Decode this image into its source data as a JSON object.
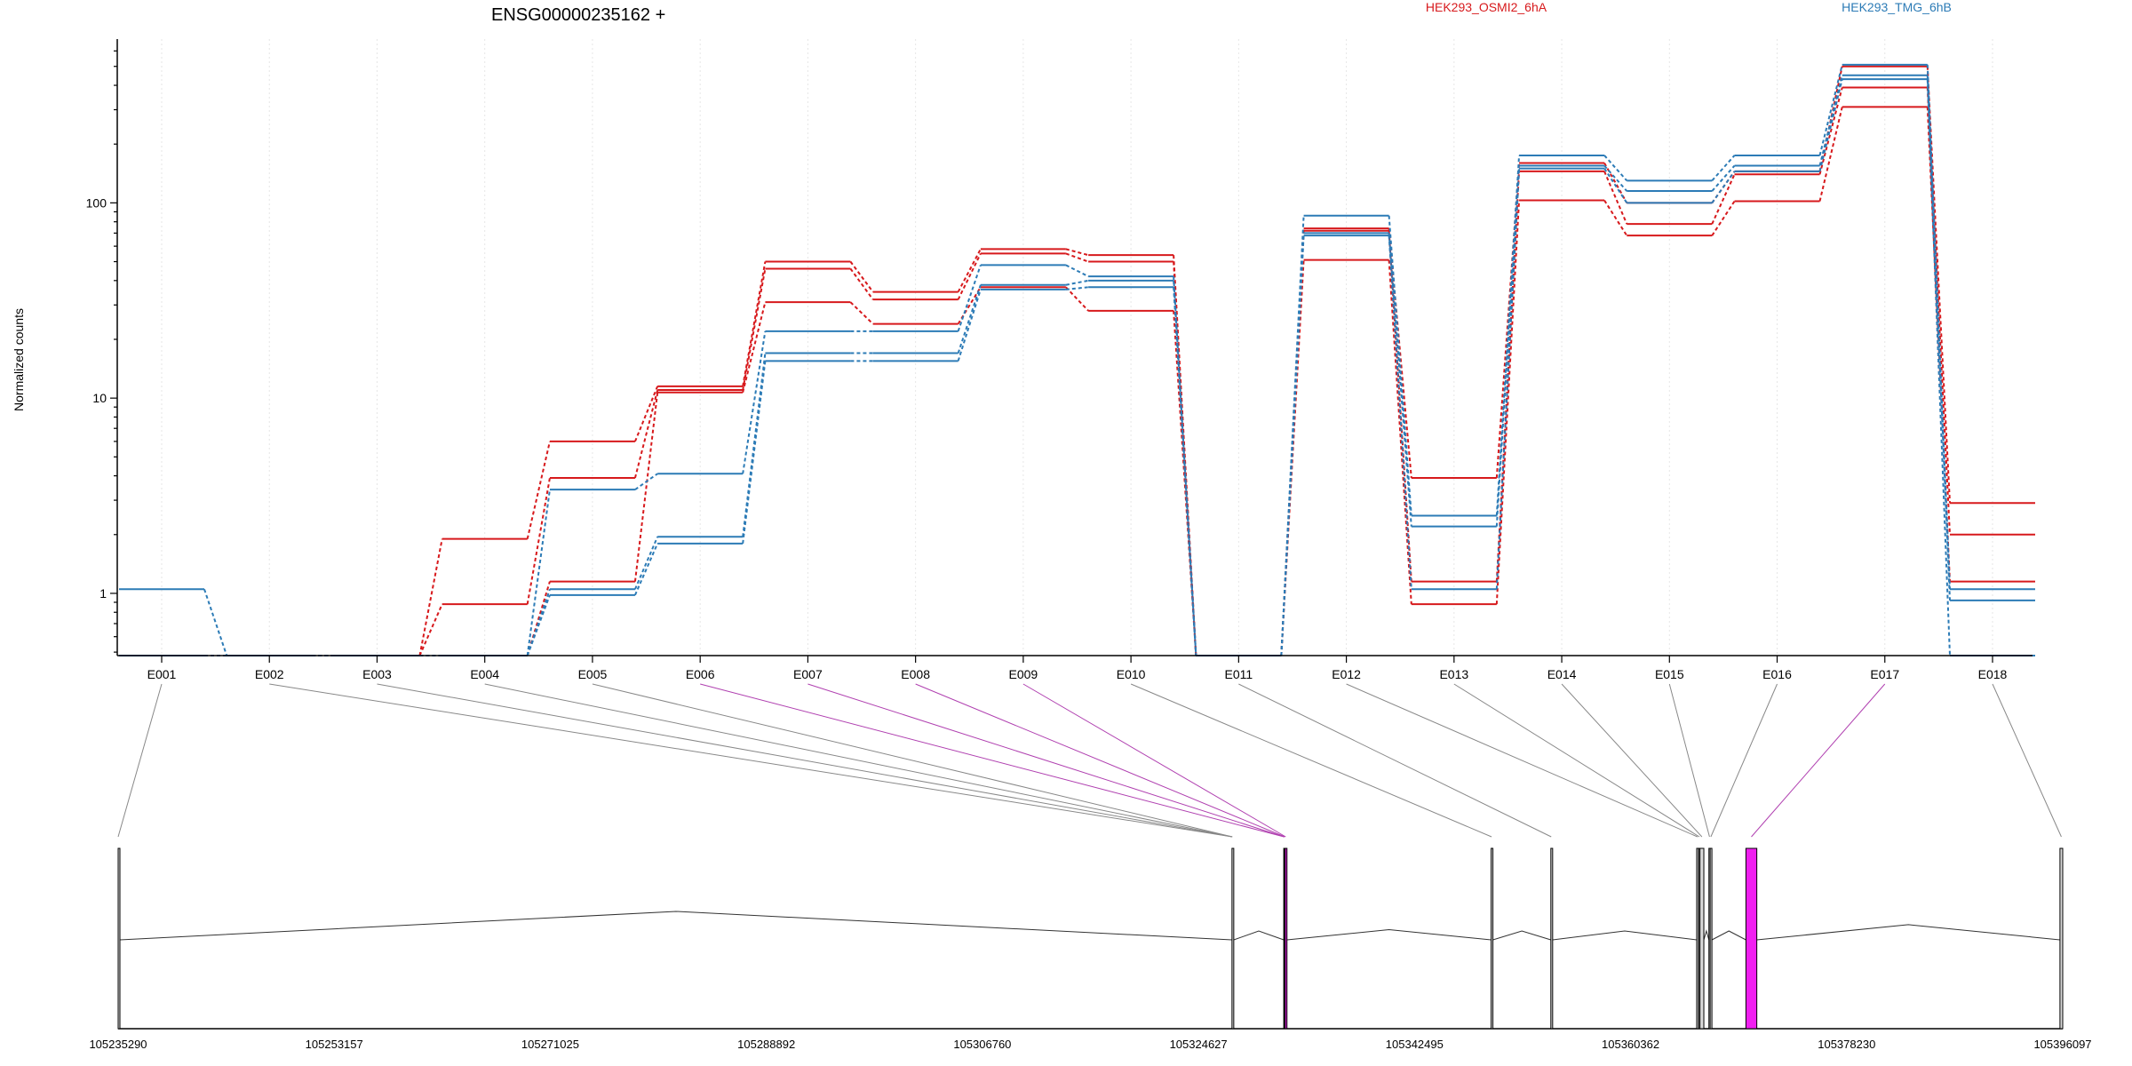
{
  "chart_data": {
    "type": "line",
    "title": "ENSG00000235162 +",
    "ylabel": "Normalized counts",
    "xlabel": "",
    "y_scale": "log",
    "ylim": [
      0.48,
      690
    ],
    "y_ticks": [
      {
        "value": 1,
        "label": "1"
      },
      {
        "value": 10,
        "label": "10"
      },
      {
        "value": 100,
        "label": "100"
      }
    ],
    "categories": [
      "E001",
      "E002",
      "E003",
      "E004",
      "E005",
      "E006",
      "E007",
      "E008",
      "E009",
      "E010",
      "E011",
      "E012",
      "E013",
      "E014",
      "E015",
      "E016",
      "E017",
      "E018"
    ],
    "grid": "vertical",
    "legend_placement": "top",
    "legend": [
      {
        "label": "HEK293_OSMI2_6hA",
        "color": "#d7191c"
      },
      {
        "label": "HEK293_TMG_6hB",
        "color": "#2c7bb6"
      }
    ],
    "series": [
      {
        "color": "#d7191c",
        "values": [
          0.48,
          0.48,
          0.48,
          1.9,
          6.0,
          11.5,
          50,
          35,
          58,
          54,
          0.48,
          74,
          3.9,
          160,
          100,
          145,
          500,
          2.9
        ]
      },
      {
        "color": "#d7191c",
        "values": [
          0.48,
          0.48,
          0.48,
          0.88,
          3.9,
          11.0,
          46,
          32,
          55,
          50,
          0.48,
          72,
          1.15,
          145,
          78,
          140,
          390,
          2.0
        ]
      },
      {
        "color": "#d7191c",
        "values": [
          0.48,
          0.48,
          0.48,
          0.48,
          1.15,
          10.7,
          31,
          24,
          37,
          28,
          0.48,
          51,
          0.88,
          103,
          68,
          102,
          310,
          1.15
        ]
      },
      {
        "color": "#2c7bb6",
        "values": [
          1.05,
          0.48,
          0.48,
          0.48,
          3.4,
          4.1,
          22,
          22,
          48,
          42,
          0.48,
          86,
          2.5,
          175,
          130,
          175,
          510,
          1.05
        ]
      },
      {
        "color": "#2c7bb6",
        "values": [
          0.48,
          0.48,
          0.48,
          0.48,
          1.05,
          1.95,
          17,
          17,
          38,
          40,
          0.48,
          70,
          2.2,
          155,
          115,
          155,
          450,
          0.92
        ]
      },
      {
        "color": "#2c7bb6",
        "values": [
          0.48,
          0.48,
          0.48,
          0.48,
          0.98,
          1.8,
          15.5,
          15.5,
          36,
          37,
          0.48,
          68,
          1.05,
          150,
          100,
          145,
          430,
          0.48
        ]
      }
    ],
    "gene_model": {
      "coordinate_ticks": [
        "105235290",
        "105253157",
        "105271025",
        "105288892",
        "105306760",
        "105324627",
        "105342495",
        "105360362",
        "105378230",
        "105396097"
      ],
      "coord_range": [
        105235290,
        105396097
      ],
      "exons": [
        {
          "id": "E001",
          "start": 105235290,
          "end": 105235290,
          "highlight": false
        },
        {
          "id": "E002",
          "start": 105327400,
          "end": 105327440,
          "highlight": false
        },
        {
          "id": "E003",
          "start": 105327400,
          "end": 105327440,
          "highlight": false
        },
        {
          "id": "E004",
          "start": 105327400,
          "end": 105327440,
          "highlight": false
        },
        {
          "id": "E005",
          "start": 105327400,
          "end": 105327440,
          "highlight": false
        },
        {
          "id": "E006",
          "start": 105331680,
          "end": 105331730,
          "highlight": true
        },
        {
          "id": "E007",
          "start": 105331680,
          "end": 105331730,
          "highlight": true
        },
        {
          "id": "E008",
          "start": 105331730,
          "end": 105331800,
          "highlight": true
        },
        {
          "id": "E009",
          "start": 105331800,
          "end": 105331880,
          "highlight": true
        },
        {
          "id": "E010",
          "start": 105348830,
          "end": 105348900,
          "highlight": false
        },
        {
          "id": "E011",
          "start": 105353770,
          "end": 105353830,
          "highlight": false
        },
        {
          "id": "E012",
          "start": 105365830,
          "end": 105365960,
          "highlight": false
        },
        {
          "id": "E013",
          "start": 105366000,
          "end": 105366100,
          "highlight": false
        },
        {
          "id": "E014",
          "start": 105366100,
          "end": 105366420,
          "highlight": false
        },
        {
          "id": "E015",
          "start": 105366840,
          "end": 105366940,
          "highlight": false
        },
        {
          "id": "E016",
          "start": 105366940,
          "end": 105367060,
          "highlight": false
        },
        {
          "id": "E017",
          "start": 105369900,
          "end": 105370800,
          "highlight": true
        },
        {
          "id": "E018",
          "start": 105395870,
          "end": 105396097,
          "highlight": false
        }
      ]
    }
  }
}
